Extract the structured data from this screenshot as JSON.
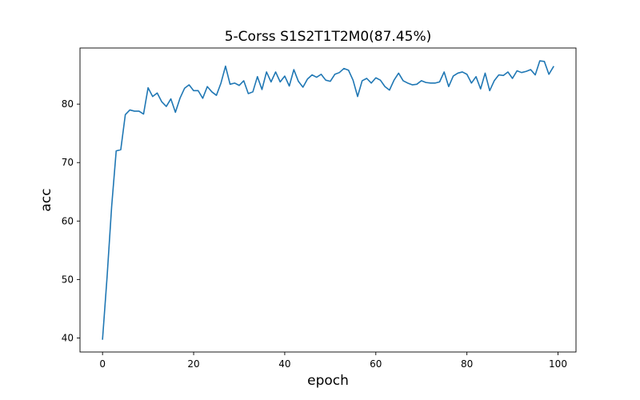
{
  "chart_data": {
    "type": "line",
    "title": "5-Corss S1S2T1T2M0(87.45%)",
    "xlabel": "epoch",
    "ylabel": "acc",
    "xlim": [
      -4.95,
      103.95
    ],
    "ylim": [
      37.6,
      89.6
    ],
    "xticks": [
      0,
      20,
      40,
      60,
      80,
      100
    ],
    "yticks": [
      40,
      50,
      60,
      70,
      80
    ],
    "grid": false,
    "series": [
      {
        "color": "#1f77b4",
        "x": [
          0,
          1,
          2,
          3,
          4,
          5,
          6,
          7,
          8,
          9,
          10,
          11,
          12,
          13,
          14,
          15,
          16,
          17,
          18,
          19,
          20,
          21,
          22,
          23,
          24,
          25,
          26,
          27,
          28,
          29,
          30,
          31,
          32,
          33,
          34,
          35,
          36,
          37,
          38,
          39,
          40,
          41,
          42,
          43,
          44,
          45,
          46,
          47,
          48,
          49,
          50,
          51,
          52,
          53,
          54,
          55,
          56,
          57,
          58,
          59,
          60,
          61,
          62,
          63,
          64,
          65,
          66,
          67,
          68,
          69,
          70,
          71,
          72,
          73,
          74,
          75,
          76,
          77,
          78,
          79,
          80,
          81,
          82,
          83,
          84,
          85,
          86,
          87,
          88,
          89,
          90,
          91,
          92,
          93,
          94,
          95,
          96,
          97,
          98,
          99
        ],
        "values": [
          39.8,
          50.5,
          62.5,
          72.0,
          72.2,
          78.2,
          79.0,
          78.8,
          78.8,
          78.3,
          82.8,
          81.3,
          81.9,
          80.4,
          79.6,
          80.9,
          78.6,
          81.0,
          82.7,
          83.3,
          82.3,
          82.3,
          81.0,
          83.0,
          82.1,
          81.5,
          83.6,
          86.5,
          83.4,
          83.6,
          83.2,
          84.0,
          81.8,
          82.1,
          84.7,
          82.5,
          85.5,
          83.8,
          85.5,
          83.8,
          84.8,
          83.1,
          85.9,
          83.9,
          82.9,
          84.3,
          85.0,
          84.6,
          85.1,
          84.1,
          83.9,
          85.1,
          85.4,
          86.1,
          85.8,
          84.1,
          81.3,
          84.0,
          84.4,
          83.6,
          84.5,
          84.1,
          83.0,
          82.4,
          84.1,
          85.3,
          84.0,
          83.6,
          83.3,
          83.4,
          84.0,
          83.7,
          83.6,
          83.6,
          83.8,
          85.5,
          83.0,
          84.8,
          85.3,
          85.5,
          85.1,
          83.6,
          84.7,
          82.6,
          85.3,
          82.3,
          84.0,
          85.0,
          84.9,
          85.5,
          84.4,
          85.7,
          85.4,
          85.6,
          85.9,
          85.0,
          87.4,
          87.3,
          85.1,
          86.4
        ]
      }
    ]
  }
}
